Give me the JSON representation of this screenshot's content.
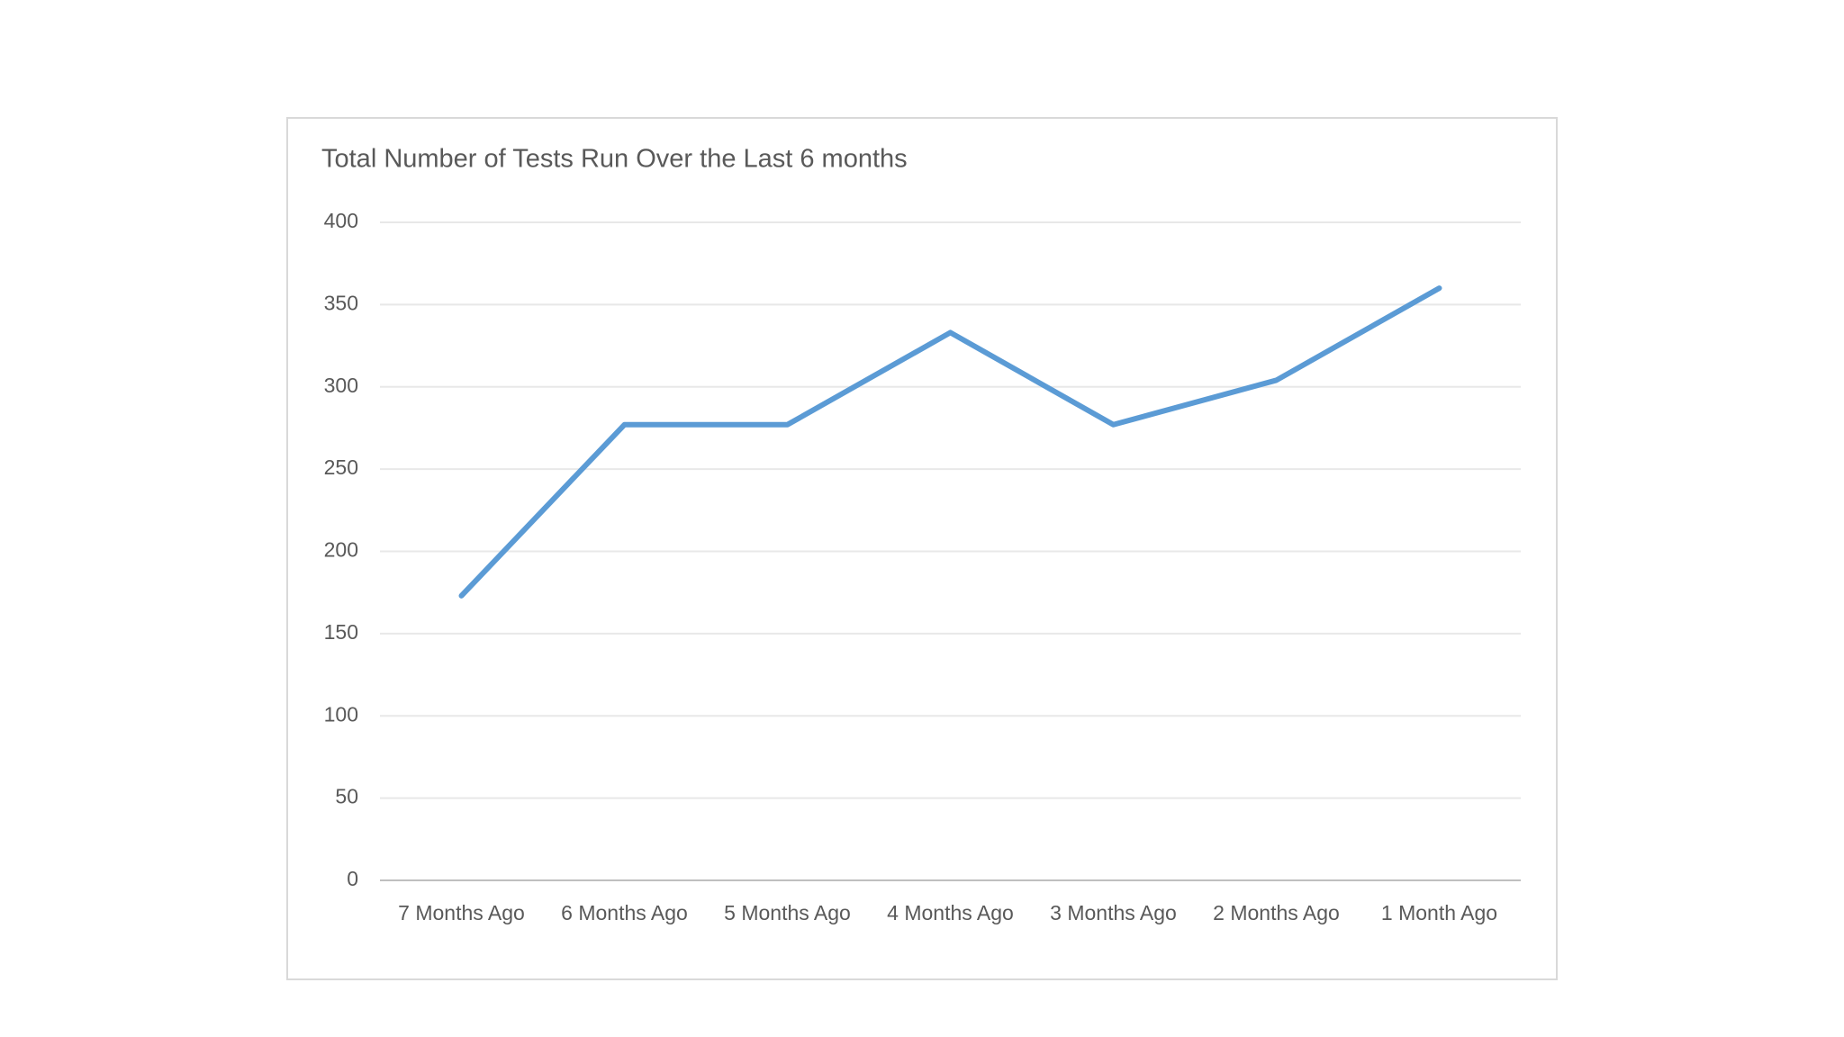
{
  "chart_data": {
    "type": "line",
    "title": "Total Number of Tests Run Over the Last 6 months",
    "categories": [
      "7 Months Ago",
      "6 Months Ago",
      "5 Months Ago",
      "4 Months Ago",
      "3 Months Ago",
      "2 Months Ago",
      "1 Month Ago"
    ],
    "values": [
      173,
      277,
      277,
      333,
      277,
      304,
      360
    ],
    "color": "#5b9bd5",
    "ylim": [
      0,
      400
    ],
    "yticks": [
      0,
      50,
      100,
      150,
      200,
      250,
      300,
      350,
      400
    ],
    "grid": true
  }
}
